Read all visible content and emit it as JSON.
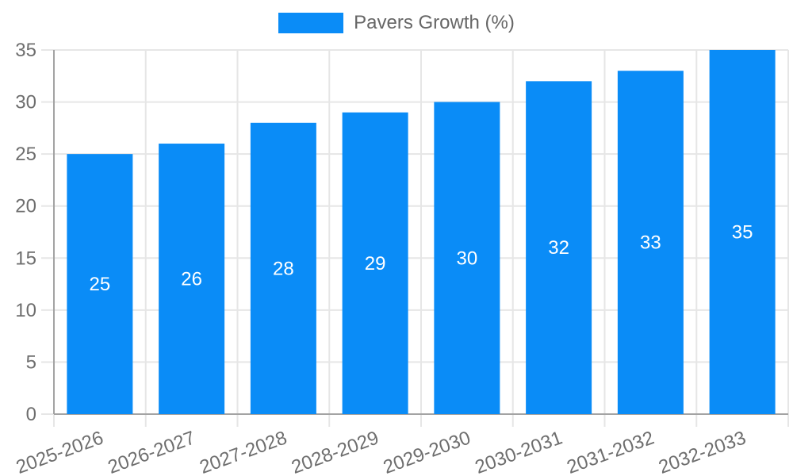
{
  "chart_data": {
    "type": "bar",
    "title": "",
    "xlabel": "",
    "ylabel": "",
    "categories": [
      "2025-2026",
      "2026-2027",
      "2027-2028",
      "2028-2029",
      "2029-2030",
      "2030-2031",
      "2031-2032",
      "2032-2033"
    ],
    "series": [
      {
        "name": "Pavers Growth (%)",
        "values": [
          25,
          26,
          28,
          29,
          30,
          32,
          33,
          35
        ]
      }
    ],
    "bar_value_labels": [
      "25",
      "26",
      "28",
      "29",
      "30",
      "32",
      "33",
      "35"
    ],
    "ylim": [
      0,
      35
    ],
    "yticks": [
      0,
      5,
      10,
      15,
      20,
      25,
      30,
      35
    ],
    "grid": true,
    "legend_position": "top",
    "x_label_rotation_deg": -20
  },
  "colors": {
    "bar": "#0a8cf7",
    "bar_label": "#ffffff",
    "grid": "#e6e6e6",
    "axis": "#a3a3a3",
    "tick_label": "#6e6e6e",
    "legend_text": "#666666",
    "background": "#ffffff"
  }
}
